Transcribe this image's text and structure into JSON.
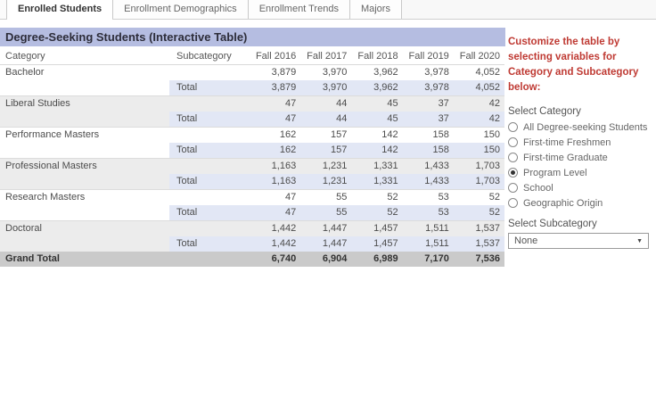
{
  "tabs": [
    {
      "label": "Enrolled Students",
      "active": true
    },
    {
      "label": "Enrollment Demographics",
      "active": false
    },
    {
      "label": "Enrollment Trends",
      "active": false
    },
    {
      "label": "Majors",
      "active": false
    }
  ],
  "table": {
    "title": "Degree-Seeking Students (Interactive Table)",
    "columns": [
      "Category",
      "Subcategory",
      "Fall 2016",
      "Fall 2017",
      "Fall 2018",
      "Fall 2019",
      "Fall 2020"
    ],
    "total_label": "Total",
    "groups": [
      {
        "category": "Bachelor",
        "values": [
          "3,879",
          "3,970",
          "3,962",
          "3,978",
          "4,052"
        ],
        "total": [
          "3,879",
          "3,970",
          "3,962",
          "3,978",
          "4,052"
        ]
      },
      {
        "category": "Liberal Studies",
        "values": [
          "47",
          "44",
          "45",
          "37",
          "42"
        ],
        "total": [
          "47",
          "44",
          "45",
          "37",
          "42"
        ]
      },
      {
        "category": "Performance Masters",
        "values": [
          "162",
          "157",
          "142",
          "158",
          "150"
        ],
        "total": [
          "162",
          "157",
          "142",
          "158",
          "150"
        ]
      },
      {
        "category": "Professional Masters",
        "values": [
          "1,163",
          "1,231",
          "1,331",
          "1,433",
          "1,703"
        ],
        "total": [
          "1,163",
          "1,231",
          "1,331",
          "1,433",
          "1,703"
        ]
      },
      {
        "category": "Research Masters",
        "values": [
          "47",
          "55",
          "52",
          "53",
          "52"
        ],
        "total": [
          "47",
          "55",
          "52",
          "53",
          "52"
        ]
      },
      {
        "category": "Doctoral",
        "values": [
          "1,442",
          "1,447",
          "1,457",
          "1,511",
          "1,537"
        ],
        "total": [
          "1,442",
          "1,447",
          "1,457",
          "1,511",
          "1,537"
        ]
      }
    ],
    "grand_total": {
      "label": "Grand Total",
      "values": [
        "6,740",
        "6,904",
        "6,989",
        "7,170",
        "7,536"
      ]
    }
  },
  "panel": {
    "instructions": "Customize the table by selecting variables for Category and Subcategory below:",
    "category_label": "Select Category",
    "category_options": [
      {
        "label": "All Degree-seeking Students",
        "selected": false
      },
      {
        "label": "First-time Freshmen",
        "selected": false
      },
      {
        "label": "First-time Graduate",
        "selected": false
      },
      {
        "label": "Program Level",
        "selected": true
      },
      {
        "label": "School",
        "selected": false
      },
      {
        "label": "Geographic Origin",
        "selected": false
      }
    ],
    "subcategory_label": "Select Subcategory",
    "subcategory_value": "None"
  },
  "icons": {
    "dropdown_caret": "▼",
    "radio": "circle-outline"
  },
  "colors": {
    "title_bar_bg": "#b5bde1",
    "total_row_bg": "#e2e7f5",
    "band_row_bg": "#ececec",
    "grand_total_bg": "#cacaca",
    "instruction_red": "#bf3a33"
  }
}
